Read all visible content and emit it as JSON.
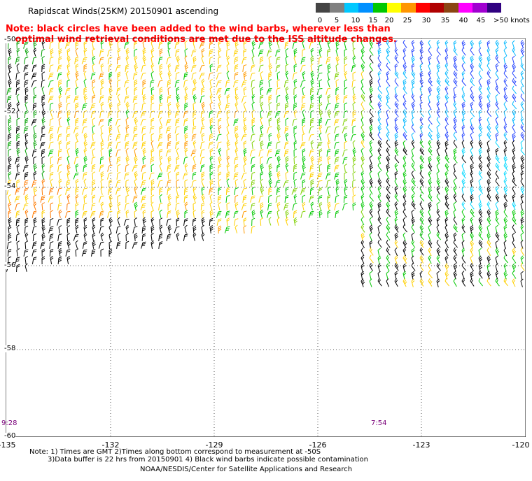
{
  "title": "Rapidscat Winds(25KM) 20150901 ascending",
  "note": {
    "line1": "Note: black circles have been added to the wind barbs, wherever less than",
    "line2": "optimal wind retrieval conditions are met due to the ISS altitude changes."
  },
  "legend": {
    "labels": [
      "0",
      "5",
      "10",
      "15",
      "20",
      "25",
      "30",
      "35",
      "40",
      "45",
      ">50 knots"
    ],
    "colors": [
      "#444444",
      "#808080",
      "#00c8ff",
      "#0090ff",
      "#00c800",
      "#ffff00",
      "#ff9600",
      "#ff0000",
      "#b00000",
      "#8b4513",
      "#ff00ff",
      "#a000d0",
      "#300080"
    ]
  },
  "map": {
    "lat_labels": [
      "-50",
      "-52",
      "-54",
      "-56",
      "-58",
      "-60"
    ],
    "lon_labels": [
      "-135",
      "-132",
      "-129",
      "-126",
      "-123",
      "-120"
    ],
    "time_labels": [
      "9:28",
      "7:54"
    ]
  },
  "footer": {
    "line1": "Note: 1) Times are GMT 2)Times along bottom correspond to measurement at -50S",
    "line2": "3)Data buffer is 22 hrs from 20150901 4) Black wind barbs indicate possible contamination",
    "credit": "NOAA/NESDIS/Center for Satellite Applications and Research"
  }
}
